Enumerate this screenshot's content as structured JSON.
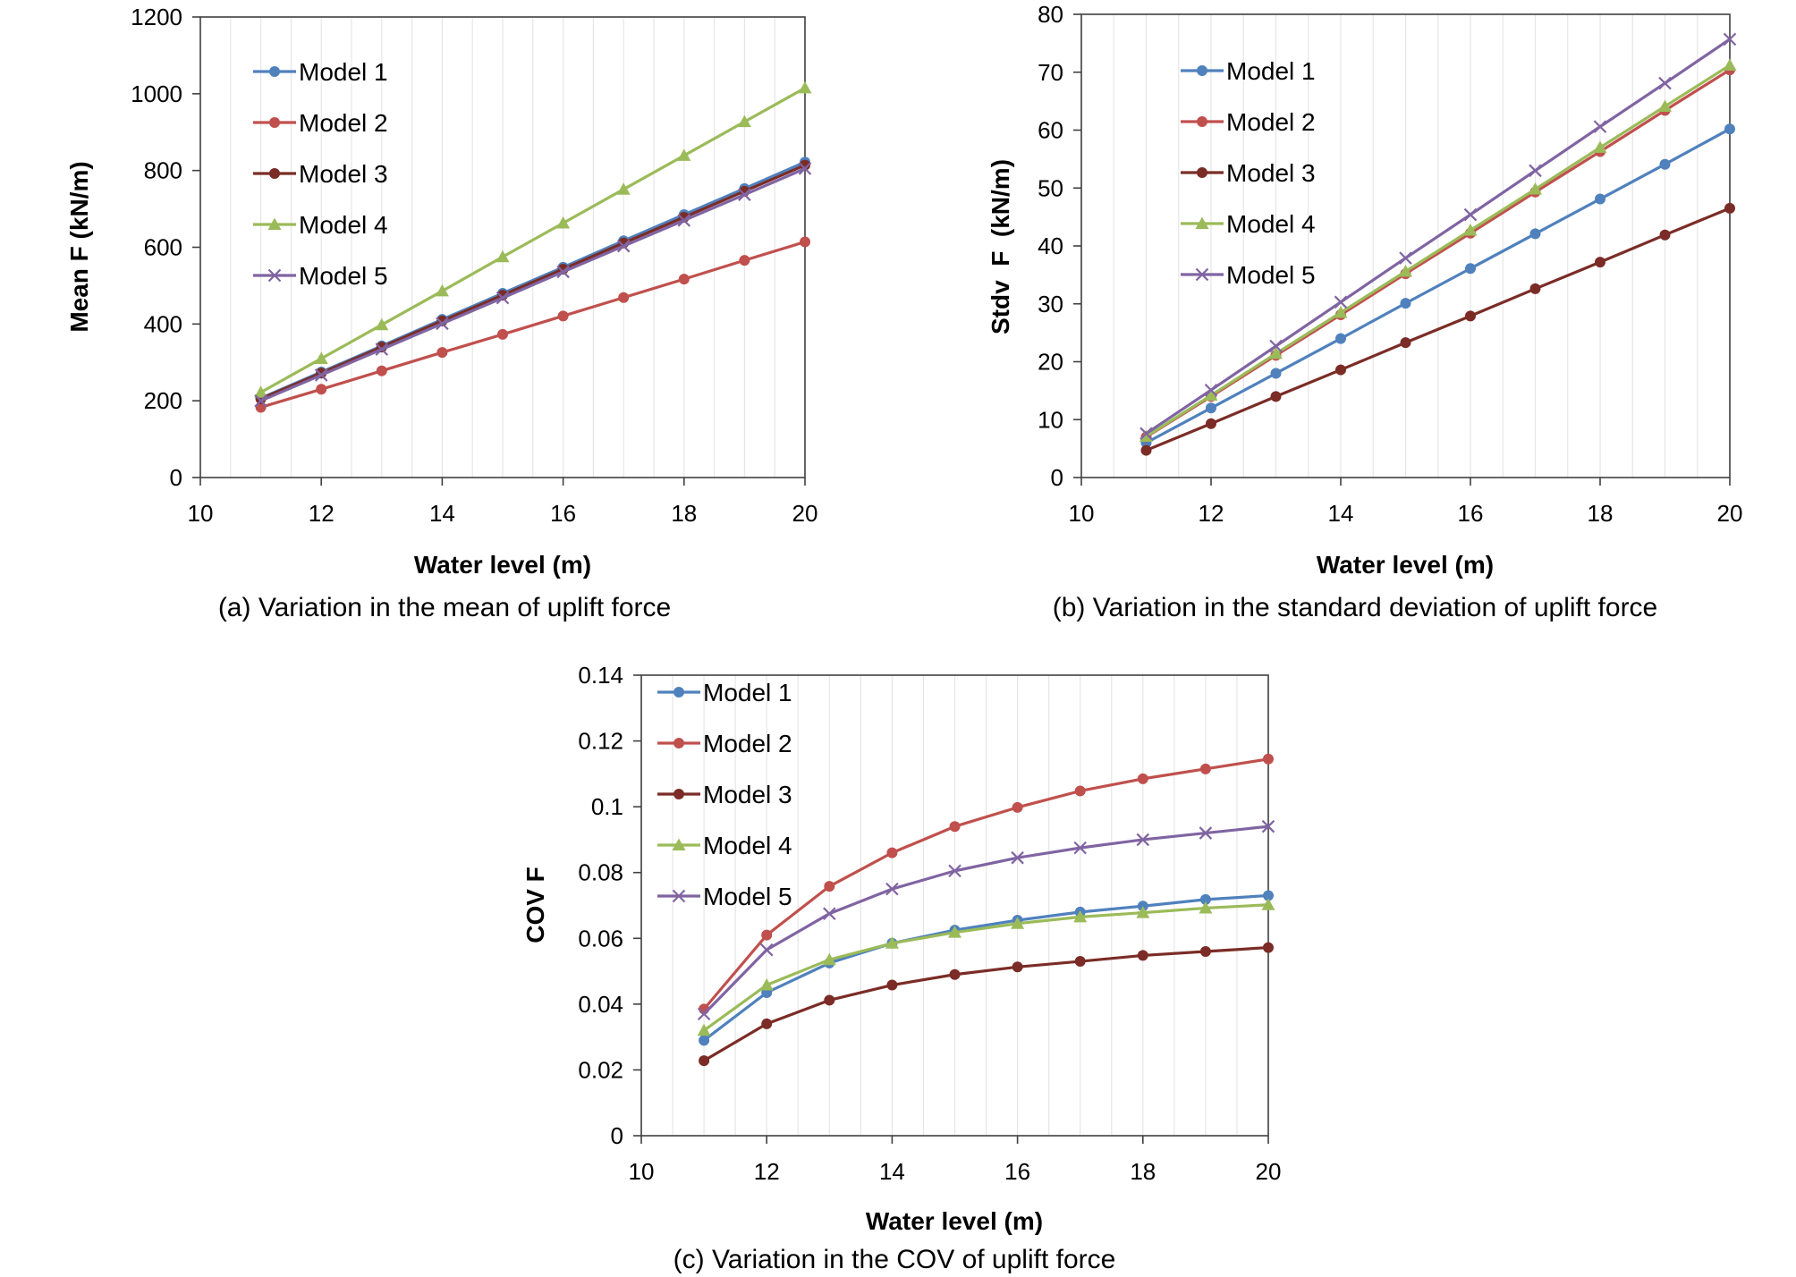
{
  "figure": {
    "captions": {
      "a": "(a) Variation in the mean of uplift force",
      "b": "(b) Variation in the standard deviation of uplift force",
      "c": "(c) Variation in the COV of uplift force"
    }
  },
  "colors": {
    "model1": "#4F81BD",
    "model2": "#C0504D",
    "model3": "#7B2C26",
    "model4": "#9BBB59",
    "model5": "#8064A2",
    "minor_grid": "#e6e6e6",
    "axis": "#404040",
    "text": "#000000"
  },
  "chart_data": [
    {
      "id": "a",
      "type": "line",
      "title": "",
      "xlabel": "Water level (m)",
      "ylabel": "Mean F (kN/m)",
      "xlim": [
        10,
        20
      ],
      "ylim": [
        0,
        1200
      ],
      "xticks": [
        10,
        12,
        14,
        16,
        18,
        20
      ],
      "yticks": [
        0,
        200,
        400,
        600,
        800,
        1000,
        1200
      ],
      "ytick_labels": [
        "0",
        "200",
        "400",
        "600",
        "800",
        "1000",
        "1200"
      ],
      "minor_grid_x_step": 0.5,
      "legend_position": "top-left",
      "x": [
        11,
        12,
        13,
        14,
        15,
        16,
        17,
        18,
        19,
        20
      ],
      "series": [
        {
          "name": "Model 1",
          "marker": "circle",
          "color": "#4F81BD",
          "values": [
            207,
            275,
            343,
            412,
            480,
            548,
            617,
            685,
            753,
            822
          ]
        },
        {
          "name": "Model 2",
          "marker": "circle",
          "color": "#C0504D",
          "values": [
            183,
            230,
            278,
            326,
            373,
            421,
            469,
            517,
            566,
            614
          ]
        },
        {
          "name": "Model 3",
          "marker": "circle",
          "color": "#7B2C26",
          "values": [
            205,
            272,
            340,
            408,
            475,
            543,
            611,
            678,
            746,
            814
          ]
        },
        {
          "name": "Model 4",
          "marker": "triangle",
          "color": "#9BBB59",
          "values": [
            222,
            310,
            398,
            486,
            575,
            663,
            751,
            839,
            927,
            1015
          ]
        },
        {
          "name": "Model 5",
          "marker": "x",
          "color": "#8064A2",
          "values": [
            200,
            267,
            334,
            401,
            468,
            536,
            603,
            670,
            737,
            805
          ]
        }
      ]
    },
    {
      "id": "b",
      "type": "line",
      "title": "",
      "xlabel": "Water level (m)",
      "ylabel": "Stdv  F  (kN/m)",
      "xlim": [
        10,
        20
      ],
      "ylim": [
        0,
        80
      ],
      "xticks": [
        10,
        12,
        14,
        16,
        18,
        20
      ],
      "yticks": [
        0,
        10,
        20,
        30,
        40,
        50,
        60,
        70,
        80
      ],
      "ytick_labels": [
        "0",
        "10",
        "20",
        "30",
        "40",
        "50",
        "60",
        "70",
        "80"
      ],
      "minor_grid_x_step": 0.5,
      "legend_position": "top-left",
      "x": [
        11,
        12,
        13,
        14,
        15,
        16,
        17,
        18,
        19,
        20
      ],
      "series": [
        {
          "name": "Model 1",
          "marker": "circle",
          "color": "#4F81BD",
          "values": [
            6.0,
            12.0,
            18.0,
            24.0,
            30.1,
            36.1,
            42.1,
            48.1,
            54.1,
            60.2
          ]
        },
        {
          "name": "Model 2",
          "marker": "circle",
          "color": "#C0504D",
          "values": [
            7.0,
            14.0,
            21.1,
            28.1,
            35.2,
            42.2,
            49.3,
            56.3,
            63.4,
            70.4
          ]
        },
        {
          "name": "Model 3",
          "marker": "circle",
          "color": "#7B2C26",
          "values": [
            4.7,
            9.3,
            14.0,
            18.6,
            23.3,
            27.9,
            32.6,
            37.2,
            41.9,
            46.5
          ]
        },
        {
          "name": "Model 4",
          "marker": "triangle",
          "color": "#9BBB59",
          "values": [
            7.1,
            14.2,
            21.4,
            28.5,
            35.6,
            42.7,
            49.8,
            57.0,
            64.1,
            71.2
          ]
        },
        {
          "name": "Model 5",
          "marker": "x",
          "color": "#8064A2",
          "values": [
            7.6,
            15.1,
            22.7,
            30.3,
            37.9,
            45.4,
            53.0,
            60.6,
            68.1,
            75.7
          ]
        }
      ]
    },
    {
      "id": "c",
      "type": "line",
      "title": "",
      "xlabel": "Water level (m)",
      "ylabel": "COV F",
      "xlim": [
        10,
        20
      ],
      "ylim": [
        0,
        0.14
      ],
      "xticks": [
        10,
        12,
        14,
        16,
        18,
        20
      ],
      "yticks": [
        0,
        0.02,
        0.04,
        0.06,
        0.08,
        0.1,
        0.12,
        0.14
      ],
      "ytick_labels": [
        "0",
        "0.02",
        "0.04",
        "0.06",
        "0.08",
        "0.1",
        "0.12",
        "0.14"
      ],
      "minor_grid_x_step": 0.5,
      "legend_position": "top-left",
      "x": [
        11,
        12,
        13,
        14,
        15,
        16,
        17,
        18,
        19,
        20
      ],
      "series": [
        {
          "name": "Model 1",
          "marker": "circle",
          "color": "#4F81BD",
          "values": [
            0.029,
            0.0435,
            0.0525,
            0.0585,
            0.0625,
            0.0655,
            0.068,
            0.0698,
            0.0718,
            0.073
          ]
        },
        {
          "name": "Model 2",
          "marker": "circle",
          "color": "#C0504D",
          "values": [
            0.0385,
            0.061,
            0.0758,
            0.086,
            0.094,
            0.0998,
            0.1048,
            0.1085,
            0.1115,
            0.1145
          ]
        },
        {
          "name": "Model 3",
          "marker": "circle",
          "color": "#7B2C26",
          "values": [
            0.0228,
            0.034,
            0.0412,
            0.0458,
            0.049,
            0.0513,
            0.053,
            0.0548,
            0.056,
            0.0572
          ]
        },
        {
          "name": "Model 4",
          "marker": "triangle",
          "color": "#9BBB59",
          "values": [
            0.032,
            0.0458,
            0.0535,
            0.0585,
            0.0618,
            0.0645,
            0.0665,
            0.0678,
            0.0692,
            0.0702
          ]
        },
        {
          "name": "Model 5",
          "marker": "x",
          "color": "#8064A2",
          "values": [
            0.037,
            0.0565,
            0.0675,
            0.075,
            0.0805,
            0.0845,
            0.0875,
            0.09,
            0.092,
            0.094
          ]
        }
      ]
    }
  ]
}
